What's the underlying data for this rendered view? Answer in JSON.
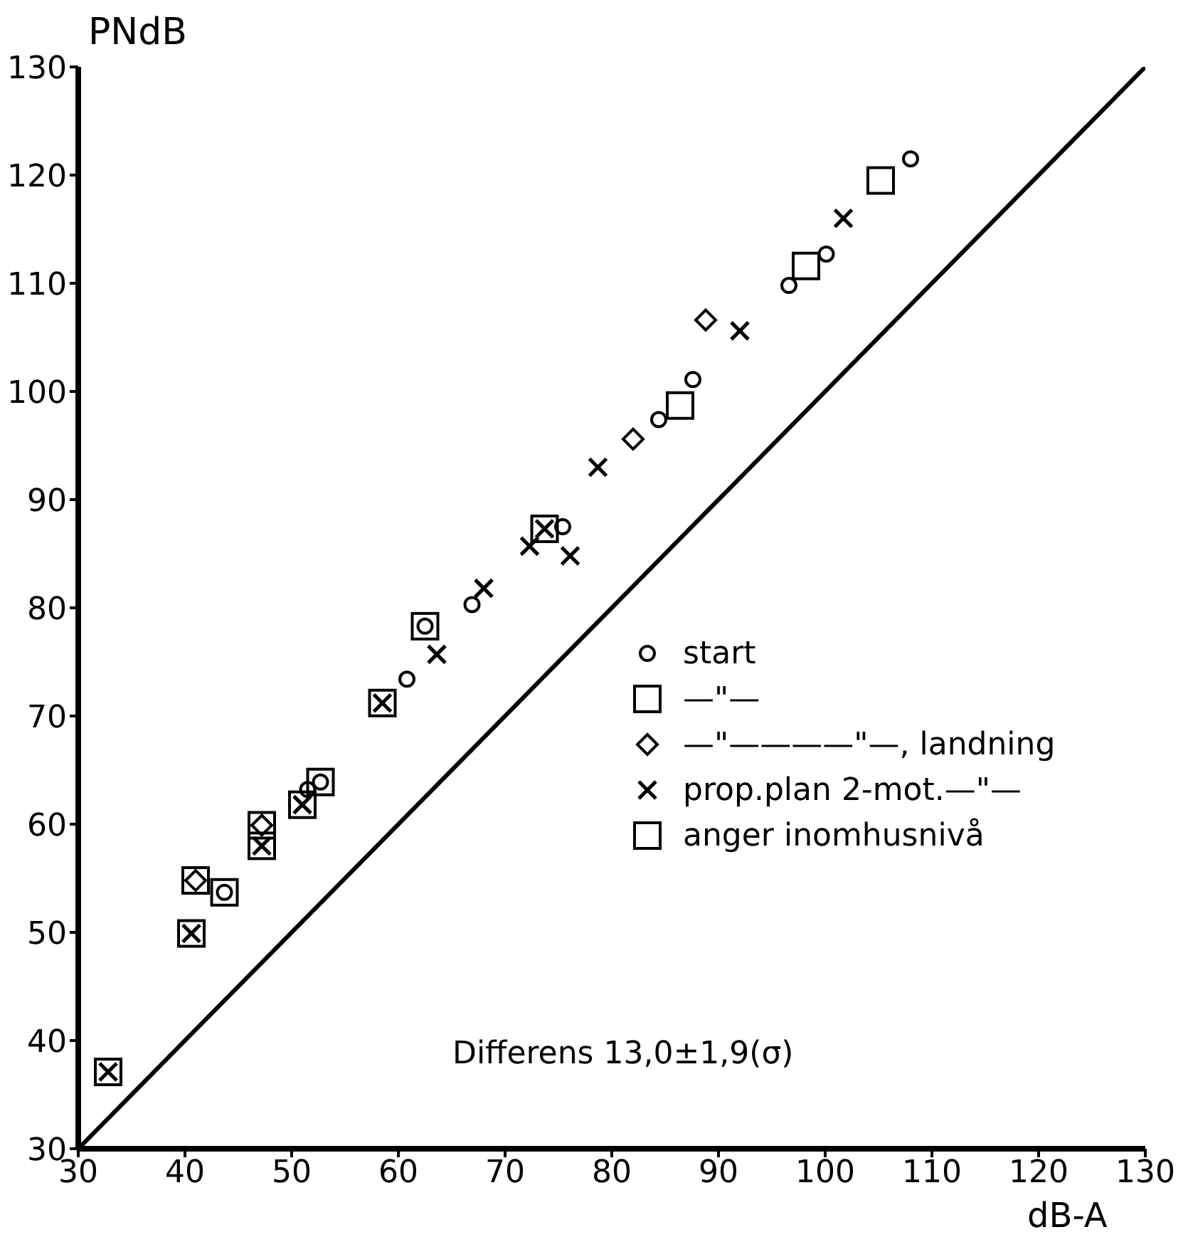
{
  "chart_data": {
    "type": "scatter",
    "ylabel": "PNdB",
    "xlabel": "dB-A",
    "xlim": [
      30,
      130
    ],
    "xticks": [
      30,
      40,
      50,
      60,
      70,
      80,
      90,
      100,
      110,
      120,
      130
    ],
    "ylim": [
      30,
      130
    ],
    "yticks": [
      30,
      40,
      50,
      60,
      70,
      80,
      90,
      100,
      110,
      120,
      130
    ],
    "legend": "right",
    "annotations": [
      "Differens 13,0±1,9(σ)"
    ],
    "series": [
      {
        "type": "line",
        "color": "#000000",
        "marker": "none",
        "x": [
          30,
          130
        ],
        "values": [
          30,
          130
        ]
      },
      {
        "name": "start",
        "color": "#000000",
        "marker": "circle",
        "x": [
          108.0,
          100.1,
          96.6,
          87.6,
          84.4,
          75.4,
          66.9,
          60.8,
          51.5
        ],
        "values": [
          121.5,
          112.7,
          109.8,
          101.1,
          97.4,
          87.5,
          80.3,
          73.4,
          63.2
        ]
      },
      {
        "name": "—\"—",
        "color": "#000000",
        "marker": "square",
        "x": [
          105.2,
          98.2,
          86.4
        ],
        "values": [
          119.5,
          111.6,
          98.7
        ]
      },
      {
        "name": "—\"————\"—, landning",
        "color": "#000000",
        "marker": "diamond",
        "x": [
          88.8,
          82.0
        ],
        "values": [
          106.6,
          95.6
        ]
      },
      {
        "name": "prop.plan 2-mot.—\"—",
        "color": "#000000",
        "marker": "cross",
        "x": [
          101.7,
          92.0,
          78.7,
          72.3,
          76.1,
          68.0,
          63.6
        ],
        "values": [
          116.0,
          105.6,
          93.0,
          85.7,
          84.8,
          81.8,
          75.7
        ]
      },
      {
        "name": "anger inomhusnivå",
        "color": "#000000",
        "marker": "square",
        "x": [
          62.5,
          52.7,
          43.7,
          73.7,
          58.5,
          51.0,
          47.2,
          40.6,
          32.8,
          47.2,
          41.0
        ],
        "values": [
          78.3,
          63.9,
          53.7,
          87.3,
          71.2,
          61.8,
          58.0,
          49.9,
          37.1,
          59.9,
          54.8
        ]
      },
      {
        "color": "#000000",
        "marker": "circle",
        "x": [
          62.5,
          52.7,
          43.7
        ],
        "values": [
          78.3,
          63.9,
          53.7
        ]
      },
      {
        "color": "#000000",
        "marker": "cross",
        "x": [
          73.7,
          58.5,
          51.0,
          47.2,
          40.6,
          32.8
        ],
        "values": [
          87.3,
          71.2,
          61.8,
          58.0,
          49.9,
          37.1
        ]
      },
      {
        "color": "#000000",
        "marker": "diamond",
        "x": [
          47.2,
          41.0
        ],
        "values": [
          59.9,
          54.8
        ]
      }
    ]
  }
}
